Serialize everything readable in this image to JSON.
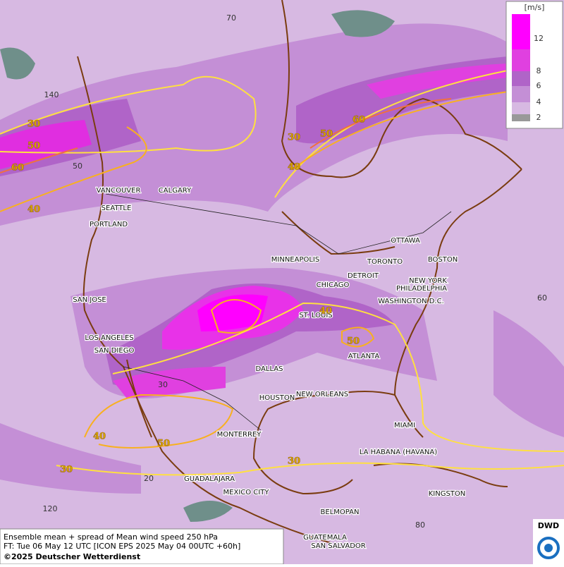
{
  "legend": {
    "unit": "[m/s]",
    "labels": [
      "12",
      "8",
      "6",
      "4",
      "2"
    ]
  },
  "cities": [
    "VANCOUVER",
    "CALGARY",
    "SEATTLE",
    "PORTLAND",
    "SAN JOSE",
    "LOS ANGELES",
    "SAN DIEGO",
    "MINNEAPOLIS",
    "CHICAGO",
    "DETROIT",
    "TORONTO",
    "OTTAWA",
    "BOSTON",
    "NEW YORK",
    "PHILADELPHIA",
    "WASHINGTON D.C.",
    "ST. LOUIS",
    "ATLANTA",
    "DALLAS",
    "HOUSTON",
    "NEW ORLEANS",
    "MIAMI",
    "MONTERREY",
    "LA HABANA (HAVANA)",
    "GUADALAJARA",
    "MEXICO CITY",
    "KINGSTON",
    "BELMOPAN",
    "GUATEMALA",
    "SAN SALVADOR"
  ],
  "contour_labels": [
    "30",
    "50",
    "60",
    "40",
    "30",
    "50",
    "60",
    "40",
    "40",
    "50",
    "40",
    "50",
    "30",
    "30"
  ],
  "grid_labels": [
    "70",
    "140",
    "50",
    "60",
    "30",
    "20",
    "120",
    "80"
  ],
  "caption": [
    "Ensemble mean + spread of Mean wind speed 250 hPa",
    "FT: Tue 06 May 12 UTC [ICON EPS 2025 May 04 00UTC +60h]",
    "©2025 Deutscher Wetterdienst"
  ],
  "logo": "DWD"
}
